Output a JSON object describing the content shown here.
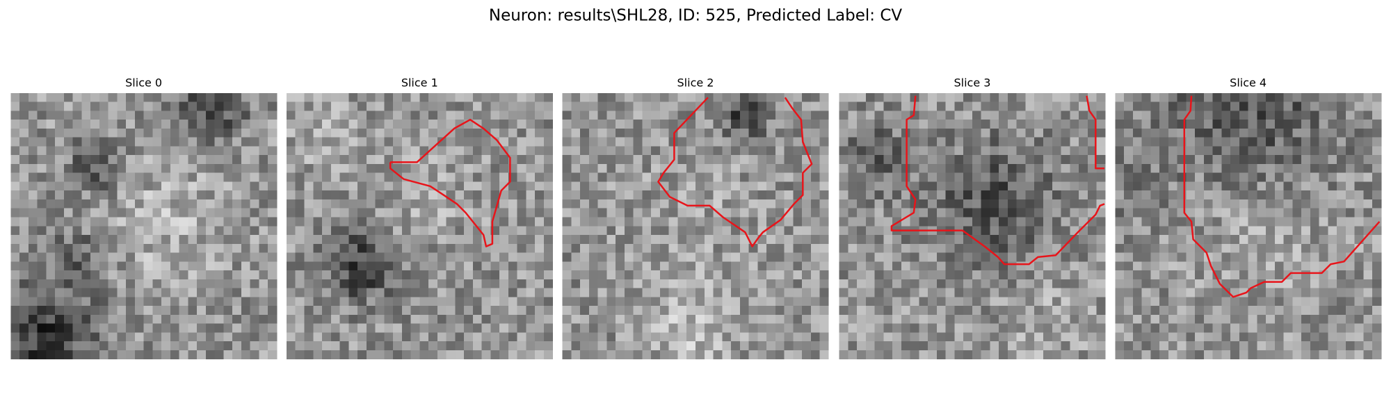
{
  "title": "Neuron: results\\SHL28, ID: 525, Predicted Label: CV",
  "panels": [
    {
      "title": "Slice 0"
    },
    {
      "title": "Slice 1"
    },
    {
      "title": "Slice 2"
    },
    {
      "title": "Slice 3"
    },
    {
      "title": "Slice 4"
    }
  ]
}
